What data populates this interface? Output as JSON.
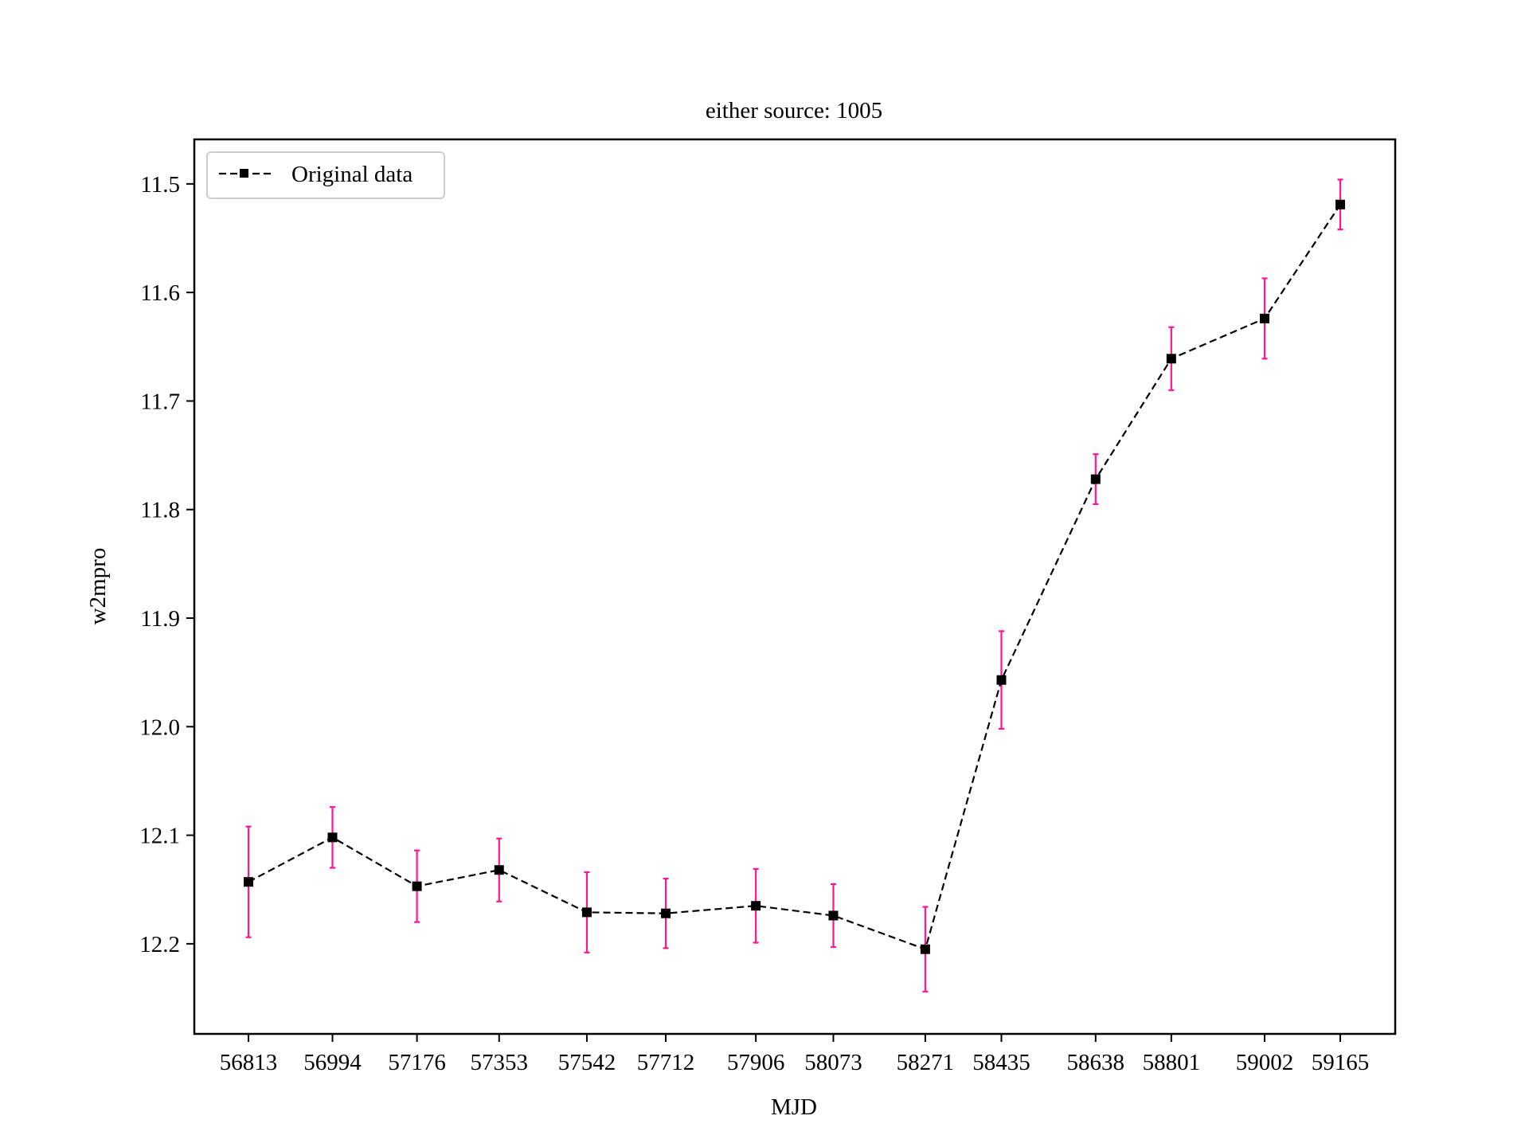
{
  "chart_data": {
    "type": "line",
    "title": "either source: 1005",
    "xlabel": "MJD",
    "ylabel": "w2mpro",
    "x_ticks": [
      "56813",
      "56994",
      "57176",
      "57353",
      "57542",
      "57712",
      "57906",
      "58073",
      "58271",
      "58435",
      "58638",
      "58801",
      "59002",
      "59165"
    ],
    "y_ticks": [
      "11.5",
      "11.6",
      "11.7",
      "11.8",
      "11.9",
      "12.0",
      "12.1",
      "12.2"
    ],
    "ylim": [
      12.283,
      11.459
    ],
    "y_inverted": true,
    "grid": false,
    "legend_position": "top-left",
    "series": [
      {
        "name": "Original data",
        "line_style": "dashed",
        "marker": "square",
        "color": "#000000",
        "errorbar_color": "#ff1493",
        "x": [
          56813,
          56994,
          57176,
          57353,
          57542,
          57712,
          57906,
          58073,
          58271,
          58435,
          58638,
          58801,
          59002,
          59165
        ],
        "y": [
          12.143,
          12.102,
          12.147,
          12.132,
          12.171,
          12.172,
          12.165,
          12.174,
          12.205,
          11.957,
          11.772,
          11.661,
          11.624,
          11.519
        ],
        "yerr": [
          0.051,
          0.028,
          0.033,
          0.029,
          0.037,
          0.032,
          0.034,
          0.029,
          0.039,
          0.045,
          0.023,
          0.029,
          0.037,
          0.023
        ]
      }
    ]
  }
}
